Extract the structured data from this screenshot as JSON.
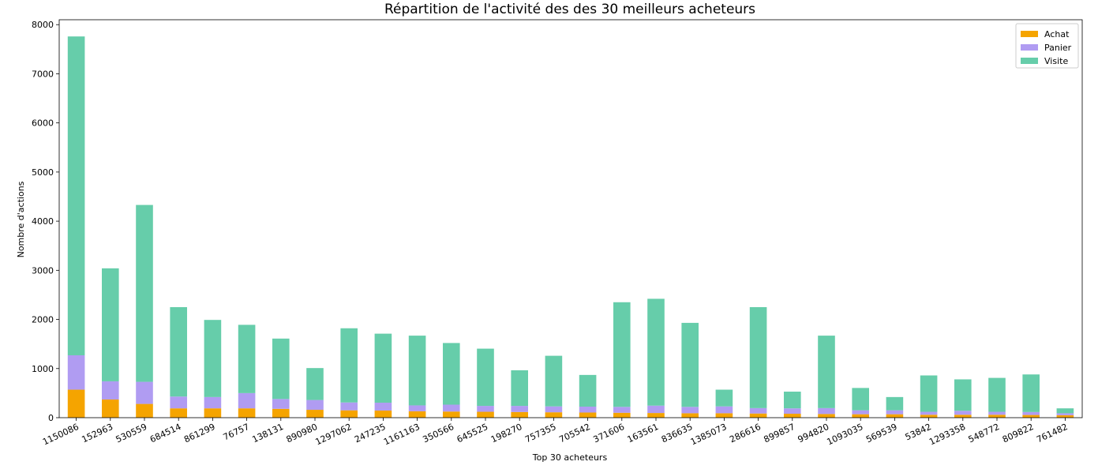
{
  "chart_data": {
    "type": "bar",
    "stacked": true,
    "title": "Répartition de l'activité des des 30 meilleurs acheteurs",
    "xlabel": "Top 30 acheteurs",
    "ylabel": "Nombre d'actions",
    "ylim": [
      0,
      8100
    ],
    "yticks": [
      0,
      1000,
      2000,
      3000,
      4000,
      5000,
      6000,
      7000,
      8000
    ],
    "grid": false,
    "legend_position": "top-right",
    "categories": [
      "1150086",
      "152963",
      "530559",
      "684514",
      "861299",
      "76757",
      "138131",
      "890980",
      "1297062",
      "247235",
      "1161163",
      "350566",
      "645525",
      "198270",
      "757355",
      "705542",
      "371606",
      "163561",
      "836635",
      "1385073",
      "286616",
      "899857",
      "994820",
      "1093035",
      "569539",
      "53842",
      "1293358",
      "548772",
      "809822",
      "761482"
    ],
    "series": [
      {
        "name": "Achat",
        "color": "#f5a400",
        "values": [
          570,
          370,
          280,
          190,
          190,
          190,
          180,
          160,
          150,
          145,
          130,
          125,
          120,
          115,
          110,
          105,
          100,
          95,
          90,
          90,
          85,
          80,
          75,
          70,
          70,
          60,
          60,
          60,
          55,
          50
        ]
      },
      {
        "name": "Panier",
        "color": "#b09cf2",
        "values": [
          700,
          370,
          450,
          240,
          230,
          310,
          200,
          200,
          160,
          160,
          120,
          140,
          120,
          125,
          120,
          120,
          120,
          150,
          130,
          140,
          110,
          110,
          120,
          80,
          80,
          60,
          80,
          60,
          60,
          40
        ]
      },
      {
        "name": "Visite",
        "color": "#66cdaa",
        "values": [
          6490,
          2300,
          3600,
          1820,
          1570,
          1390,
          1230,
          650,
          1510,
          1405,
          1420,
          1255,
          1165,
          725,
          1030,
          645,
          2130,
          2175,
          1710,
          340,
          2055,
          340,
          1475,
          455,
          270,
          740,
          640,
          690,
          765,
          100
        ]
      }
    ]
  }
}
